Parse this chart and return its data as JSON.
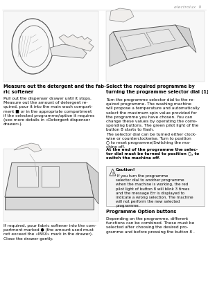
{
  "page_num": "9",
  "brand": "electrolux",
  "bg_color": "#ffffff",
  "text_color": "#000000",
  "section1_title": "Measure out the detergent and the fab-\nric softener",
  "section1_body": "Pull out the dispenser drawer until it stops.\nMeasure out the amount of detergent re-\nquired, pour it into the main wash compart-\nment ■ or in the appropriate compartment\nif the selected programme/option it requires\n(see more details in «Detergent dispenser\ndrawer»).",
  "section1_body2": "If required, pour fabric softener into the com-\npartment marked ● (the amount used must\nnot exceed the «MAX» mark in the drawer).\nClose the drawer gently.",
  "section2_title": "Select the required programme by\nturning the programme selector dial (1)",
  "section2_body": "Turn the programme selector dial to the re-\nquired programme. The washing machine\nwill propose a temperature and automatically\nselect the maximum spin value provided for\nthe programme you have chosen. You can\nchange these values by operating the corre-\nsponding buttons. The green pilot light of the\nbutton 8 starts to flash.\nThe selector dial can be turned either clock-\nwise or counterclockwise. Turn to position\n○ to reset programme/Switching the ma-\nchine off.",
  "section2_bold": "At the end of the programme the selec-\ntor dial must be turned to position ○, to\nswitch the machine off.",
  "section2_caution_title": "Caution!",
  "section2_caution": " If you turn the programme\nselector dial to another programme\nwhen the machine is working, the red\npilot light of button 8 will blink 3 times\nand the message Err is displayed to\nindicate a wrong selection. The machine\nwill not perform the new selected\nprogramme.",
  "section3_title": "Programme Option buttons",
  "section3_body": "Depending on the programme, different\nfunctions can be combined. These must be\nselected after choosing the desired pro-\ngramme and before pressing the button 8 ."
}
